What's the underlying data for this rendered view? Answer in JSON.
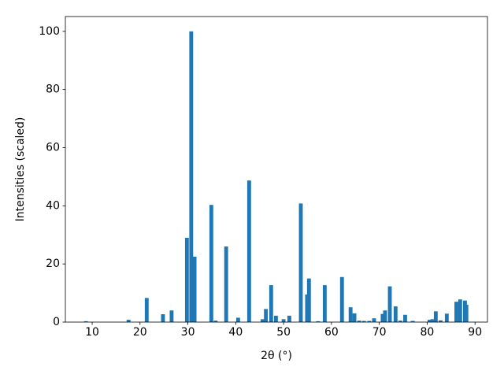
{
  "chart_data": {
    "type": "bar",
    "xlabel": "2θ (°)",
    "ylabel": "Intensities (scaled)",
    "x": [
      8.7,
      17.6,
      21.4,
      24.8,
      26.6,
      29.8,
      30.7,
      31.4,
      34.9,
      35.8,
      38.0,
      40.5,
      42.8,
      45.6,
      46.3,
      47.4,
      48.4,
      50.0,
      51.2,
      53.6,
      54.9,
      55.3,
      57.2,
      58.6,
      62.2,
      64.0,
      64.8,
      65.8,
      66.8,
      67.9,
      68.9,
      70.7,
      71.2,
      72.2,
      73.4,
      74.4,
      75.4,
      77.0,
      80.5,
      81.1,
      81.8,
      82.8,
      84.1,
      86.1,
      86.9,
      87.9,
      88.2
    ],
    "values": [
      0.3,
      0.8,
      8.3,
      2.7,
      4.0,
      29.0,
      100,
      22.5,
      40.3,
      0.5,
      26,
      1.5,
      48.7,
      1.0,
      4.5,
      12.7,
      2.2,
      1.0,
      2.2,
      40.8,
      9.5,
      15,
      0.3,
      12.7,
      15.5,
      5.1,
      3.0,
      0.5,
      0.4,
      0.4,
      1.3,
      2.8,
      4.0,
      12.3,
      5.4,
      0.5,
      2.5,
      0.4,
      0.8,
      1.0,
      3.7,
      0.6,
      2.9,
      7.0,
      7.8,
      7.4,
      6.0
    ],
    "color": "#1f77b4",
    "bar_width": 0.8,
    "xlim": [
      4.4,
      92.6
    ],
    "xticks": [
      10,
      20,
      30,
      40,
      50,
      60,
      70,
      80,
      90
    ],
    "ylim": [
      0,
      105.1
    ],
    "yticks": [
      0,
      20,
      40,
      60,
      80,
      100
    ]
  }
}
